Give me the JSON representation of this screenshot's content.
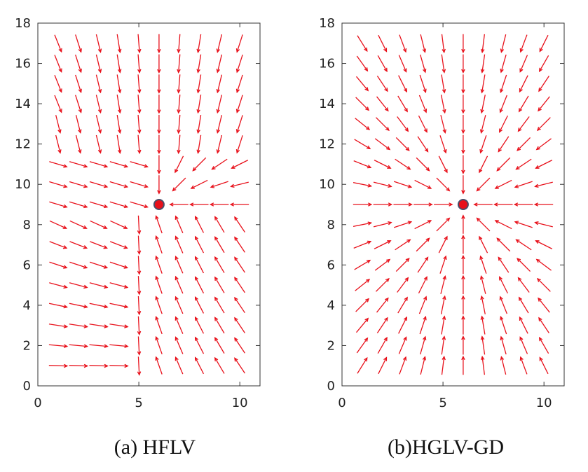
{
  "figure": {
    "panels": [
      {
        "caption": "(a)  HFLV"
      },
      {
        "caption": "(b)HGLV-GD"
      }
    ]
  },
  "colors": {
    "arrow": "#e8101a",
    "target_fill": "#e8101a",
    "target_stroke": "#4a4f6a",
    "axes": "#333333"
  },
  "chart_data": [
    {
      "type": "quiver",
      "xlim": [
        0,
        11
      ],
      "ylim": [
        0,
        18
      ],
      "xticks": [
        0,
        5,
        10
      ],
      "yticks": [
        0,
        2,
        4,
        6,
        8,
        10,
        12,
        14,
        16,
        18
      ],
      "grid": false,
      "target": {
        "x": 6,
        "y": 9
      },
      "field_rule": "wall-like flow: vectors left of x≈5.5 point down-right and curve around toward the target, vectors right of x≈5.5 and below y≈9 point up-left toward the target, upper region vectors point mostly downward",
      "arrows": [
        {
          "x": 1,
          "y": 17,
          "dx": 0.35,
          "dy": -0.9
        },
        {
          "x": 2,
          "y": 17,
          "dx": 0.3,
          "dy": -0.9
        },
        {
          "x": 3,
          "y": 17,
          "dx": 0.25,
          "dy": -0.9
        },
        {
          "x": 4,
          "y": 17,
          "dx": 0.2,
          "dy": -0.9
        },
        {
          "x": 5,
          "y": 17,
          "dx": 0.15,
          "dy": -0.9
        },
        {
          "x": 6,
          "y": 17,
          "dx": 0.0,
          "dy": -0.9
        },
        {
          "x": 7,
          "y": 17,
          "dx": -0.15,
          "dy": -0.9
        },
        {
          "x": 8,
          "y": 17,
          "dx": -0.25,
          "dy": -0.9
        },
        {
          "x": 9,
          "y": 17,
          "dx": -0.35,
          "dy": -0.9
        },
        {
          "x": 10,
          "y": 17,
          "dx": -0.45,
          "dy": -0.85
        }
      ]
    },
    {
      "type": "quiver",
      "xlim": [
        0,
        11
      ],
      "ylim": [
        0,
        18
      ],
      "xticks": [
        0,
        5,
        10
      ],
      "yticks": [
        0,
        2,
        4,
        6,
        8,
        10,
        12,
        14,
        16,
        18
      ],
      "grid": false,
      "target": {
        "x": 6,
        "y": 9
      },
      "field_rule": "radial: every vector points straight toward the target at (6, 9)",
      "arrows": [
        {
          "x": 1,
          "y": 17,
          "dx": 0.53,
          "dy": -0.85
        },
        {
          "x": 6,
          "y": 17,
          "dx": 0.0,
          "dy": -1.0
        },
        {
          "x": 10,
          "y": 17,
          "dx": -0.45,
          "dy": -0.89
        },
        {
          "x": 1,
          "y": 9,
          "dx": 1.0,
          "dy": 0.0
        },
        {
          "x": 10,
          "y": 9,
          "dx": -1.0,
          "dy": 0.0
        },
        {
          "x": 1,
          "y": 1,
          "dx": 0.53,
          "dy": 0.85
        },
        {
          "x": 6,
          "y": 1,
          "dx": 0.0,
          "dy": 1.0
        },
        {
          "x": 10,
          "y": 1,
          "dx": -0.45,
          "dy": 0.89
        }
      ]
    }
  ]
}
